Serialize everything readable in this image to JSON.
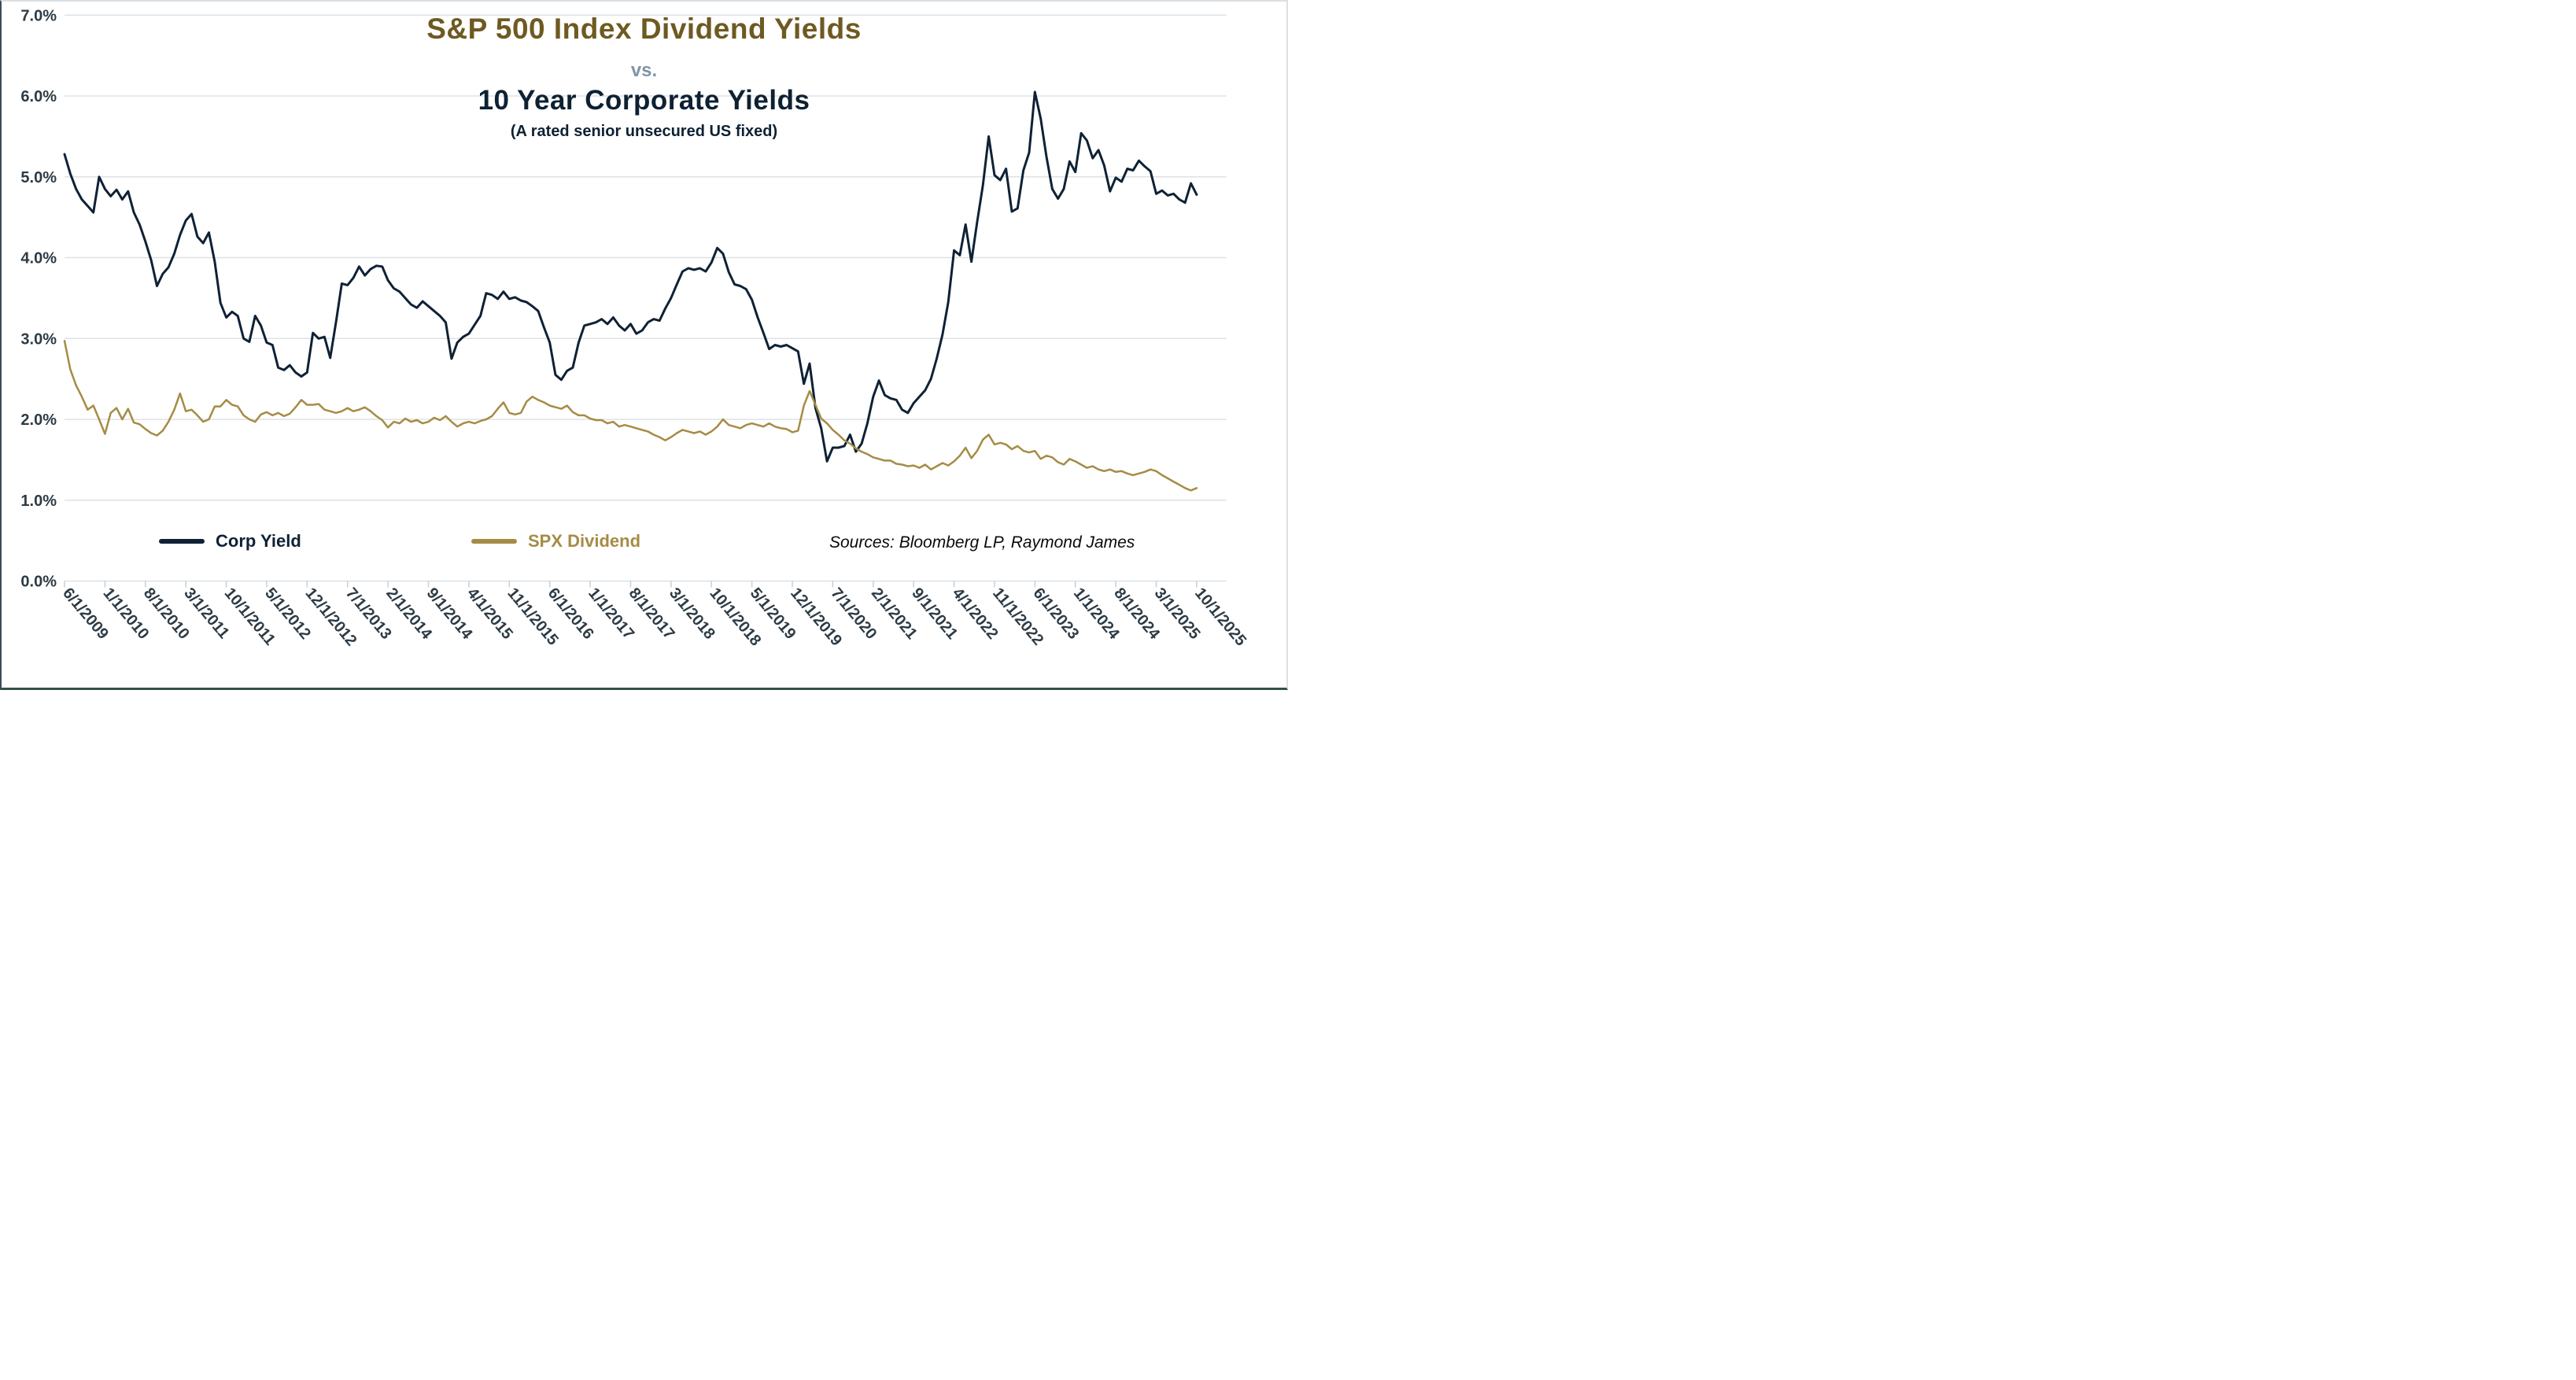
{
  "page": {
    "title_main": "S&P 500 Index Dividend Yields",
    "title_vs": "vs.",
    "title_second": "10 Year Corporate Yields",
    "title_subnote": "(A rated senior unsecured US fixed)"
  },
  "legend": {
    "items": [
      {
        "label": "Corp Yield",
        "color": "#0f2135"
      },
      {
        "label": "SPX Dividend",
        "color": "#a58c45"
      }
    ]
  },
  "sources": "Sources: Bloomberg LP, Raymond James",
  "colors": {
    "corp_line": "#0f2135",
    "spx_line": "#a58c45",
    "gridline": "#dde2e6",
    "axis_tick": "#c9d2d8",
    "axis_label": "#2d3b45",
    "title_gold": "#6e5a21",
    "title_navy": "#0e2133",
    "title_vs_gray": "#8294a6"
  },
  "chart_data": {
    "type": "line",
    "title": "S&P 500 Index Dividend Yields vs. 10 Year Corporate Yields (A rated senior unsecured US fixed)",
    "xlabel": "",
    "ylabel": "",
    "ylim": [
      0,
      7
    ],
    "grid": "horizontal",
    "legend_position": "bottom-left",
    "y_tick_labels": [
      "0.0%",
      "1.0%",
      "2.0%",
      "3.0%",
      "4.0%",
      "5.0%",
      "6.0%",
      "7.0%"
    ],
    "x_start": "6/1/2009",
    "x_end": "10/1/2025",
    "x_frequency": "monthly",
    "x_tick_interval_months": 7,
    "x_tick_labels": [
      "6/1/2009",
      "1/1/2010",
      "8/1/2010",
      "3/1/2011",
      "10/1/2011",
      "5/1/2012",
      "12/1/2012",
      "7/1/2013",
      "2/1/2014",
      "9/1/2014",
      "4/1/2015",
      "11/1/2015",
      "6/1/2016",
      "1/1/2017",
      "8/1/2017",
      "3/1/2018",
      "10/1/2018",
      "5/1/2019",
      "12/1/2019",
      "7/1/2020",
      "2/1/2021",
      "9/1/2021",
      "4/1/2022",
      "11/1/2022",
      "6/1/2023",
      "1/1/2024",
      "8/1/2024",
      "3/1/2025",
      "10/1/2025"
    ],
    "series": [
      {
        "name": "Corp Yield",
        "color": "#0f2135",
        "values": [
          5.28,
          5.04,
          4.85,
          4.72,
          4.64,
          4.56,
          5.0,
          4.85,
          4.76,
          4.84,
          4.72,
          4.82,
          4.56,
          4.41,
          4.2,
          3.97,
          3.65,
          3.8,
          3.88,
          4.05,
          4.28,
          4.46,
          4.54,
          4.26,
          4.18,
          4.31,
          3.95,
          3.44,
          3.26,
          3.33,
          3.28,
          3.0,
          2.96,
          3.28,
          3.16,
          2.95,
          2.92,
          2.64,
          2.61,
          2.67,
          2.58,
          2.53,
          2.58,
          3.07,
          3.0,
          3.02,
          2.76,
          3.2,
          3.68,
          3.66,
          3.75,
          3.89,
          3.78,
          3.86,
          3.9,
          3.89,
          3.72,
          3.62,
          3.58,
          3.5,
          3.42,
          3.38,
          3.46,
          3.4,
          3.34,
          3.28,
          3.2,
          2.75,
          2.95,
          3.02,
          3.06,
          3.17,
          3.28,
          3.56,
          3.54,
          3.49,
          3.58,
          3.49,
          3.51,
          3.47,
          3.45,
          3.4,
          3.34,
          3.14,
          2.95,
          2.55,
          2.49,
          2.6,
          2.64,
          2.95,
          3.16,
          3.18,
          3.2,
          3.24,
          3.18,
          3.26,
          3.16,
          3.1,
          3.18,
          3.06,
          3.1,
          3.2,
          3.24,
          3.22,
          3.37,
          3.5,
          3.67,
          3.83,
          3.87,
          3.85,
          3.87,
          3.83,
          3.94,
          4.12,
          4.05,
          3.82,
          3.67,
          3.65,
          3.61,
          3.48,
          3.26,
          3.07,
          2.87,
          2.92,
          2.9,
          2.92,
          2.88,
          2.84,
          2.44,
          2.69,
          2.14,
          1.89,
          1.48,
          1.65,
          1.65,
          1.67,
          1.81,
          1.6,
          1.7,
          1.95,
          2.28,
          2.48,
          2.3,
          2.26,
          2.24,
          2.12,
          2.08,
          2.2,
          2.28,
          2.36,
          2.5,
          2.75,
          3.05,
          3.45,
          4.09,
          4.03,
          4.41,
          3.95,
          4.44,
          4.9,
          5.5,
          5.02,
          4.96,
          5.1,
          4.57,
          4.61,
          5.08,
          5.3,
          6.05,
          5.72,
          5.25,
          4.85,
          4.73,
          4.85,
          5.19,
          5.06,
          5.54,
          5.45,
          5.23,
          5.33,
          5.14,
          4.82,
          4.99,
          4.94,
          5.1,
          5.08,
          5.2,
          5.13,
          5.07,
          4.79,
          4.83,
          4.77,
          4.79,
          4.72,
          4.68,
          4.92,
          4.78
        ]
      },
      {
        "name": "SPX Dividend",
        "color": "#a58c45",
        "values": [
          2.97,
          2.62,
          2.42,
          2.28,
          2.12,
          2.17,
          2.0,
          1.82,
          2.08,
          2.14,
          2.0,
          2.13,
          1.96,
          1.94,
          1.88,
          1.83,
          1.8,
          1.86,
          1.97,
          2.12,
          2.32,
          2.1,
          2.12,
          2.05,
          1.97,
          2.0,
          2.16,
          2.16,
          2.24,
          2.18,
          2.16,
          2.05,
          2.0,
          1.97,
          2.06,
          2.09,
          2.05,
          2.08,
          2.04,
          2.07,
          2.15,
          2.24,
          2.18,
          2.18,
          2.19,
          2.12,
          2.1,
          2.08,
          2.1,
          2.14,
          2.1,
          2.12,
          2.15,
          2.1,
          2.04,
          1.99,
          1.9,
          1.97,
          1.95,
          2.01,
          1.97,
          1.99,
          1.95,
          1.97,
          2.02,
          1.99,
          2.04,
          1.97,
          1.91,
          1.95,
          1.97,
          1.95,
          1.98,
          2.0,
          2.04,
          2.13,
          2.21,
          2.08,
          2.06,
          2.08,
          2.22,
          2.28,
          2.24,
          2.21,
          2.17,
          2.15,
          2.13,
          2.17,
          2.09,
          2.05,
          2.05,
          2.01,
          1.99,
          1.99,
          1.95,
          1.97,
          1.91,
          1.93,
          1.91,
          1.89,
          1.87,
          1.85,
          1.81,
          1.78,
          1.74,
          1.78,
          1.83,
          1.87,
          1.85,
          1.83,
          1.85,
          1.81,
          1.85,
          1.91,
          2.0,
          1.93,
          1.91,
          1.89,
          1.93,
          1.95,
          1.93,
          1.91,
          1.95,
          1.91,
          1.89,
          1.88,
          1.84,
          1.86,
          2.17,
          2.35,
          2.18,
          2.01,
          1.95,
          1.87,
          1.81,
          1.74,
          1.7,
          1.64,
          1.6,
          1.57,
          1.53,
          1.51,
          1.49,
          1.49,
          1.45,
          1.44,
          1.42,
          1.43,
          1.4,
          1.44,
          1.38,
          1.42,
          1.46,
          1.43,
          1.48,
          1.55,
          1.65,
          1.52,
          1.61,
          1.75,
          1.81,
          1.69,
          1.71,
          1.69,
          1.63,
          1.67,
          1.61,
          1.59,
          1.61,
          1.51,
          1.55,
          1.53,
          1.47,
          1.44,
          1.51,
          1.48,
          1.44,
          1.4,
          1.42,
          1.38,
          1.36,
          1.38,
          1.35,
          1.36,
          1.33,
          1.31,
          1.33,
          1.35,
          1.38,
          1.36,
          1.31,
          1.27,
          1.23,
          1.19,
          1.15,
          1.12,
          1.15
        ]
      }
    ]
  }
}
